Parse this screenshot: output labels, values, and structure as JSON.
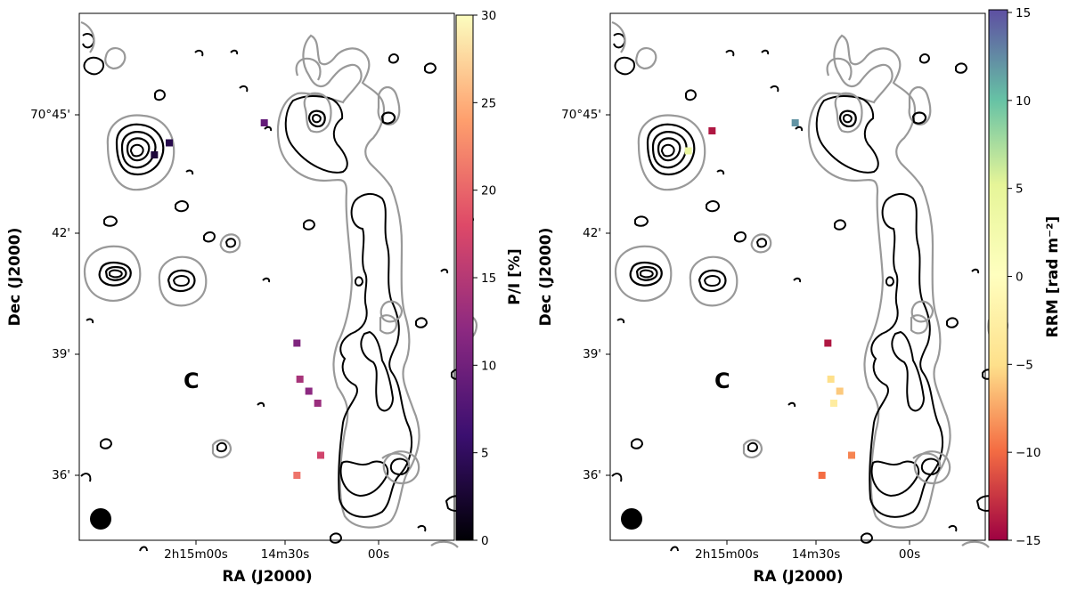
{
  "chart_data": [
    {
      "type": "heatmap",
      "panel": "left",
      "xlabel": "RA (J2000)",
      "ylabel": "Dec (J2000)",
      "x_ticks": [
        "2h15m00s",
        "14m30s",
        "00s"
      ],
      "y_ticks": [
        "70°45'",
        "42'",
        "39'",
        "36'"
      ],
      "colorbar": {
        "label": "P/I [%]",
        "range": [
          0,
          30
        ],
        "ticks": [
          "0",
          "5",
          "10",
          "15",
          "20",
          "25",
          "30"
        ],
        "colormap": "magma",
        "colors": [
          "#000004",
          "#3b0f70",
          "#8c2981",
          "#de4968",
          "#fe9f6d",
          "#fcfdbf"
        ]
      },
      "annotation": "C",
      "pixels": [
        {
          "ra": "2h14m37s",
          "dec": "70°44.8'",
          "value": 9
        },
        {
          "ra": "2h15m09s",
          "dec": "70°44.3'",
          "value": 4
        },
        {
          "ra": "2h15m14s",
          "dec": "70°44.0'",
          "value": 3
        },
        {
          "ra": "2h14m26s",
          "dec": "70°39.3'",
          "value": 11
        },
        {
          "ra": "2h14m25s",
          "dec": "70°38.4'",
          "value": 14
        },
        {
          "ra": "2h14m22s",
          "dec": "70°38.1'",
          "value": 12
        },
        {
          "ra": "2h14m19s",
          "dec": "70°37.8'",
          "value": 13
        },
        {
          "ra": "2h14m18s",
          "dec": "70°36.5'",
          "value": 17
        },
        {
          "ra": "2h14m26s",
          "dec": "70°36.0'",
          "value": 21
        }
      ]
    },
    {
      "type": "heatmap",
      "panel": "right",
      "xlabel": "RA (J2000)",
      "ylabel": "Dec (J2000)",
      "x_ticks": [
        "2h15m00s",
        "14m30s",
        "00s"
      ],
      "y_ticks": [
        "70°45'",
        "42'",
        "39'",
        "36'"
      ],
      "colorbar": {
        "label": "RRM [rad m⁻²]",
        "range": [
          -15,
          15
        ],
        "ticks": [
          "−15",
          "−10",
          "−5",
          "0",
          "5",
          "10",
          "15"
        ],
        "colormap": "Spectral",
        "colors": [
          "#9e0142",
          "#f46d43",
          "#fee08b",
          "#ffffbf",
          "#e6f598",
          "#66c2a5",
          "#5e4fa2"
        ]
      },
      "annotation": "C",
      "pixels": [
        {
          "ra": "2h14m37s",
          "dec": "70°44.8'",
          "value": 12
        },
        {
          "ra": "2h15m05s",
          "dec": "70°44.6'",
          "value": -14
        },
        {
          "ra": "2h15m13s",
          "dec": "70°44.1'",
          "value": 4
        },
        {
          "ra": "2h14m26s",
          "dec": "70°39.3'",
          "value": -14
        },
        {
          "ra": "2h14m25s",
          "dec": "70°38.4'",
          "value": -5
        },
        {
          "ra": "2h14m22s",
          "dec": "70°38.1'",
          "value": -6
        },
        {
          "ra": "2h14m24s",
          "dec": "70°37.8'",
          "value": -3
        },
        {
          "ra": "2h14m18s",
          "dec": "70°36.5'",
          "value": -9
        },
        {
          "ra": "2h14m28s",
          "dec": "70°36.0'",
          "value": -10
        }
      ]
    }
  ]
}
